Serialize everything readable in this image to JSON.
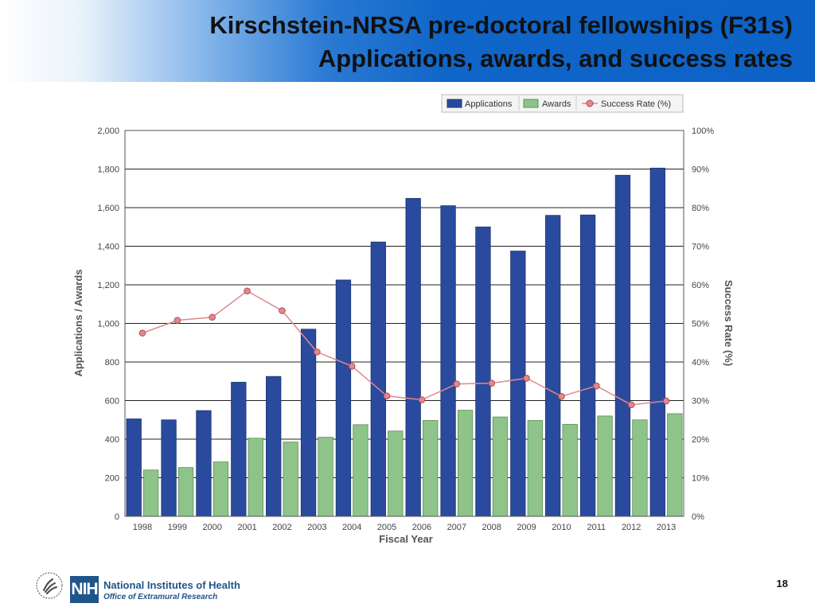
{
  "slide": {
    "title_line1": "Kirschstein-NRSA pre-doctoral fellowships (F31s)",
    "title_line2": "Applications, awards, and success rates",
    "page_number": "18"
  },
  "footer": {
    "logo_text": "NIH",
    "org_name": "National Institutes of Health",
    "office_name": "Office of Extramural Research"
  },
  "colors": {
    "applications": "#2a4a9e",
    "awards": "#8ec489",
    "success_rate": "#e0898f",
    "banner": "#0c62c6"
  },
  "chart_data": {
    "type": "bar",
    "categories": [
      "1998",
      "1999",
      "2000",
      "2001",
      "2002",
      "2003",
      "2004",
      "2005",
      "2006",
      "2007",
      "2008",
      "2009",
      "2010",
      "2011",
      "2012",
      "2013"
    ],
    "series": [
      {
        "name": "Applications",
        "type": "bar",
        "axis": "left",
        "values": [
          505,
          500,
          548,
          695,
          725,
          970,
          1225,
          1422,
          1648,
          1610,
          1500,
          1375,
          1560,
          1562,
          1768,
          1805
        ]
      },
      {
        "name": "Awards",
        "type": "bar",
        "axis": "left",
        "values": [
          240,
          253,
          282,
          405,
          385,
          410,
          475,
          442,
          497,
          550,
          515,
          497,
          477,
          520,
          500,
          532
        ]
      },
      {
        "name": "Success Rate (%)",
        "type": "line",
        "axis": "right",
        "values": [
          47.5,
          50.8,
          51.6,
          58.4,
          53.3,
          42.6,
          38.9,
          31.2,
          30.2,
          34.3,
          34.5,
          35.8,
          31.1,
          33.8,
          28.9,
          29.9
        ]
      }
    ],
    "xlabel": "Fiscal Year",
    "ylabel": "Applications / Awards",
    "y2label": "Success Rate (%)",
    "ylim": [
      0,
      2000
    ],
    "y2lim": [
      0,
      100
    ],
    "yticks": [
      "0",
      "200",
      "400",
      "600",
      "800",
      "1,000",
      "1,200",
      "1,400",
      "1,600",
      "1,800",
      "2,000"
    ],
    "y2ticks": [
      "0%",
      "10%",
      "20%",
      "30%",
      "40%",
      "50%",
      "60%",
      "70%",
      "80%",
      "90%",
      "100%"
    ],
    "grid": true,
    "legend_position": "top-right"
  }
}
